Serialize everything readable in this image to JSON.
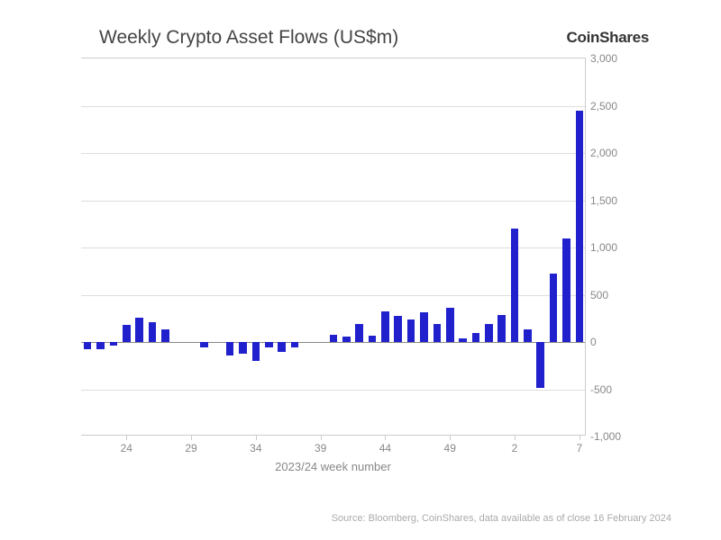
{
  "chart": {
    "type": "bar",
    "title": "Weekly Crypto Asset Flows (US$m)",
    "title_fontsize": 21,
    "title_color": "#444444",
    "brand": "CoinShares",
    "brand_fontsize": 17,
    "brand_color": "#333333",
    "x_axis_title": "2023/24 week number",
    "xlabel_fontsize": 13,
    "xlabel_color": "#888888",
    "ylim": [
      -1000,
      3000
    ],
    "ytick_step": 500,
    "yticks": [
      -1000,
      -500,
      0,
      500,
      1000,
      1500,
      2000,
      2500,
      3000
    ],
    "ytick_labels": [
      "-1,000",
      "-500",
      "0",
      "500",
      "1,000",
      "1,500",
      "2,000",
      "2,500",
      "3,000"
    ],
    "ytick_fontsize": 12,
    "ytick_color": "#888888",
    "grid_color": "#dddddd",
    "border_color": "#cccccc",
    "zero_line_color": "#888888",
    "background_color": "#ffffff",
    "bar_color": "#2020cc",
    "bar_width_ratio": 0.6,
    "x_tick_labels": [
      "24",
      "29",
      "34",
      "39",
      "44",
      "49",
      "2",
      "7"
    ],
    "x_tick_positions": [
      3,
      8,
      13,
      18,
      23,
      28,
      33,
      38
    ],
    "categories": [
      "21",
      "22",
      "23",
      "24",
      "25",
      "26",
      "27",
      "28",
      "29",
      "30",
      "31",
      "32",
      "33",
      "34",
      "35",
      "36",
      "37",
      "38",
      "39",
      "40",
      "41",
      "42",
      "43",
      "44",
      "45",
      "46",
      "47",
      "48",
      "49",
      "50",
      "51",
      "52",
      "1",
      "2",
      "3",
      "4",
      "5",
      "6",
      "7"
    ],
    "values": [
      -80,
      -80,
      -40,
      180,
      260,
      210,
      130,
      0,
      0,
      -60,
      0,
      -140,
      -120,
      -200,
      -60,
      -100,
      -60,
      0,
      0,
      80,
      60,
      190,
      70,
      320,
      280,
      240,
      310,
      190,
      360,
      40,
      100,
      190,
      290,
      1200,
      130,
      -490,
      720,
      1100,
      2450
    ],
    "source": "Source: Bloomberg, CoinShares, data available as of close 16 February 2024",
    "source_fontsize": 11,
    "source_color": "#aaaaaa"
  }
}
